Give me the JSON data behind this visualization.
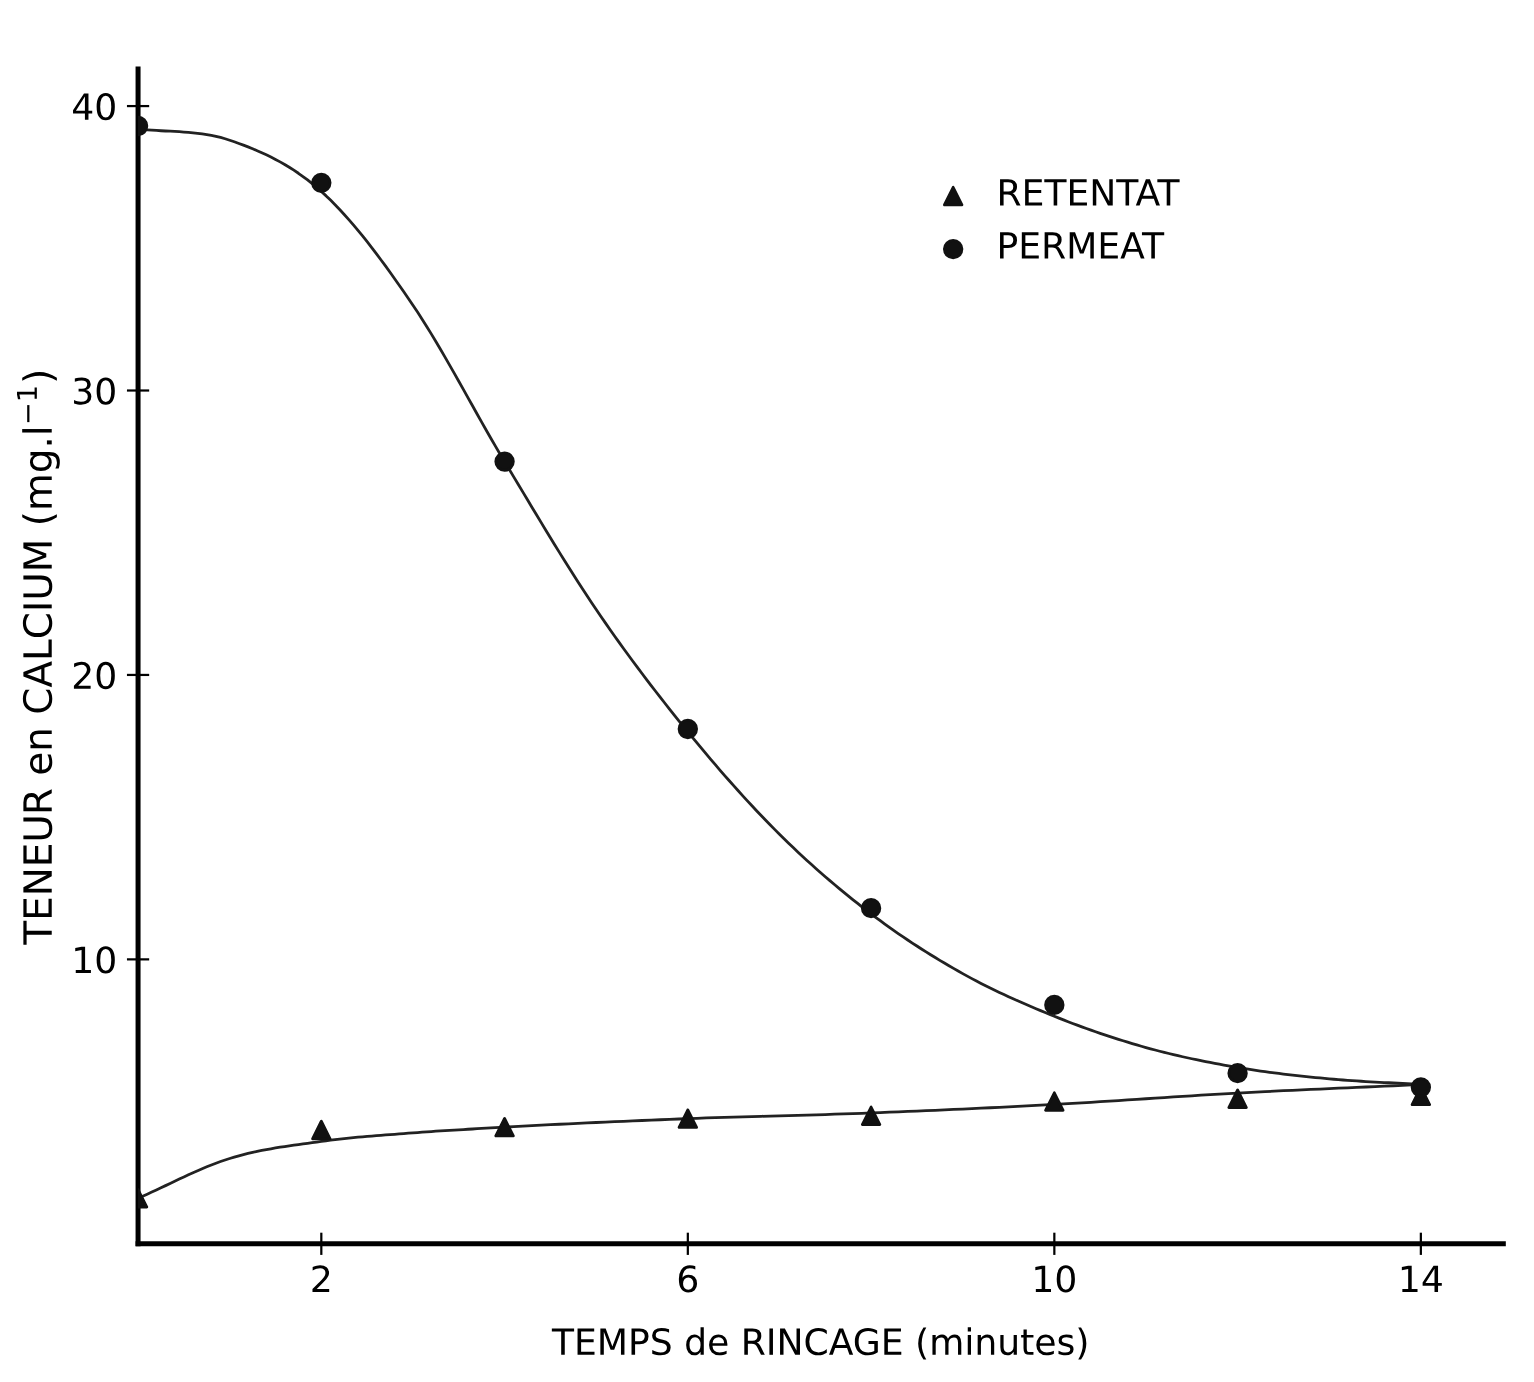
{
  "chart_data": {
    "type": "scatter",
    "xlabel": "TEMPS de RINCAGE (minutes)",
    "ylabel": "TENEUR en CALCIUM (mg.l$^{−1}$)",
    "xlim": [
      0,
      14.9
    ],
    "xticks": [
      2,
      6,
      10,
      14
    ],
    "ylim": [
      0,
      41.3
    ],
    "yticks": [
      10,
      20,
      30,
      40
    ],
    "grid": false,
    "legend": "top right",
    "series": [
      {
        "name": "RETENTAT",
        "color": "#111111",
        "marker": "triangle",
        "x": [
          0,
          2,
          4,
          6,
          8,
          10,
          12,
          14
        ],
        "values": [
          1.6,
          4.0,
          4.1,
          4.4,
          4.5,
          5.0,
          5.1,
          5.2
        ]
      },
      {
        "name": "PERMEAT",
        "color": "#111111",
        "marker": "circle",
        "x": [
          0,
          2,
          4,
          6,
          8,
          10,
          12,
          14
        ],
        "values": [
          39.3,
          37.3,
          27.5,
          18.1,
          11.8,
          8.4,
          6.0,
          5.5
        ]
      },
      {
        "type": "line",
        "color": "#222222",
        "marker": "none",
        "line_style": "solid",
        "x": [
          0,
          1,
          2,
          3,
          4,
          6,
          8,
          10,
          12,
          14
        ],
        "values": [
          1.6,
          3.0,
          3.6,
          3.9,
          4.1,
          4.4,
          4.6,
          4.9,
          5.3,
          5.6
        ]
      },
      {
        "type": "line",
        "color": "#222222",
        "marker": "none",
        "line_style": "solid",
        "x": [
          0,
          1,
          2,
          3,
          4,
          5,
          6,
          7,
          8,
          9,
          10,
          11,
          12,
          13,
          14
        ],
        "values": [
          39.2,
          38.8,
          37.0,
          33.0,
          27.5,
          22.3,
          18.0,
          14.4,
          11.6,
          9.5,
          8.0,
          6.9,
          6.2,
          5.8,
          5.6
        ]
      }
    ]
  }
}
